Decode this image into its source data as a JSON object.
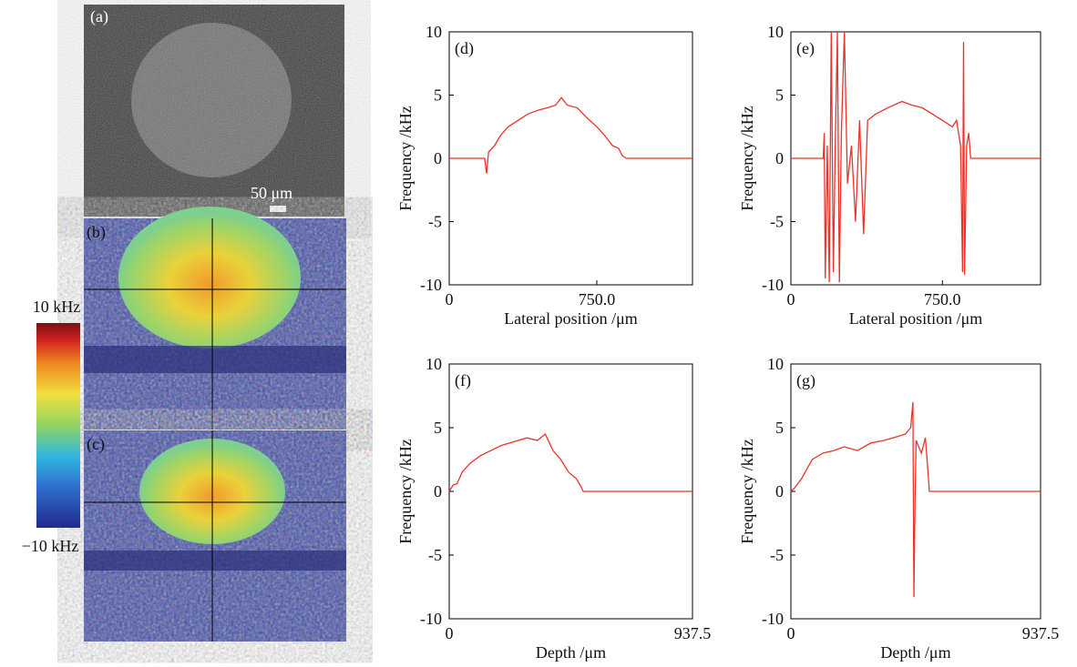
{
  "images": {
    "panel_labels": [
      "(a)",
      "(b)",
      "(c)"
    ],
    "scale_bar": "50 μm",
    "colorbar_max": "10 kHz",
    "colorbar_min": "−10 kHz"
  },
  "chart_data": [
    {
      "type": "line",
      "label": "(d)",
      "x_label": "Lateral position /μm",
      "y_label": "Frequency /kHz",
      "xlim": [
        0,
        1236
      ],
      "ylim": [
        -10,
        10
      ],
      "xticks": [
        0,
        {
          "value": 750,
          "label": "750.0"
        }
      ],
      "yticks": [
        -10,
        -5,
        0,
        5,
        10
      ],
      "x": [
        0,
        180,
        190,
        200,
        230,
        260,
        300,
        350,
        400,
        450,
        500,
        540,
        570,
        600,
        650,
        700,
        750,
        790,
        830,
        860,
        880,
        900,
        1236
      ],
      "series": [
        {
          "color": "#e8332a",
          "values": [
            0,
            0,
            -1.2,
            0.5,
            1.0,
            1.8,
            2.5,
            3.0,
            3.5,
            3.8,
            4.0,
            4.2,
            4.8,
            4.2,
            4.0,
            3.2,
            2.5,
            1.8,
            1.0,
            0.8,
            0.2,
            0,
            0
          ]
        }
      ]
    },
    {
      "type": "line",
      "label": "(e)",
      "x_label": "Lateral position  /μm",
      "y_label": "Frequency /kHz",
      "xlim": [
        0,
        1236
      ],
      "ylim": [
        -10,
        10
      ],
      "xticks": [
        0,
        {
          "value": 750,
          "label": "750.0"
        }
      ],
      "yticks": [
        -10,
        -5,
        0,
        5,
        10
      ],
      "x": [
        0,
        160,
        165,
        170,
        180,
        190,
        200,
        210,
        220,
        230,
        240,
        250,
        265,
        280,
        300,
        320,
        340,
        360,
        380,
        420,
        480,
        550,
        600,
        650,
        700,
        750,
        800,
        820,
        840,
        850,
        855,
        860,
        870,
        880,
        890,
        1236
      ],
      "series": [
        {
          "color": "#e8332a",
          "values": [
            0,
            0,
            2,
            -9.5,
            1,
            -9.8,
            10,
            -9,
            1.5,
            10,
            -9.8,
            2,
            10,
            -2,
            1,
            -5,
            3,
            -6,
            3,
            3.5,
            4,
            4.5,
            4.2,
            4,
            3.5,
            3,
            2.5,
            3,
            1,
            -9,
            9.2,
            -9.2,
            1,
            2,
            0,
            0
          ]
        }
      ]
    },
    {
      "type": "line",
      "label": "(f)",
      "x_label": "Depth  /μm",
      "y_label": "Frequency /kHz",
      "xlim": [
        0,
        937.5
      ],
      "ylim": [
        -10,
        10
      ],
      "xticks": [
        0,
        937.5
      ],
      "yticks": [
        -10,
        -5,
        0,
        5,
        10
      ],
      "x": [
        0,
        15,
        30,
        50,
        80,
        120,
        160,
        200,
        250,
        300,
        340,
        370,
        400,
        430,
        460,
        490,
        510,
        516,
        937.5
      ],
      "series": [
        {
          "color": "#e8332a",
          "values": [
            0,
            0.5,
            0.6,
            1.5,
            2.2,
            2.8,
            3.2,
            3.6,
            3.9,
            4.2,
            4.0,
            4.5,
            3.2,
            2.5,
            1.5,
            1.0,
            0.3,
            0,
            0
          ]
        }
      ]
    },
    {
      "type": "line",
      "label": "(g)",
      "x_label": "Depth  /μm",
      "y_label": "Frequency /kHz",
      "xlim": [
        0,
        937.5
      ],
      "ylim": [
        -10,
        10
      ],
      "xticks": [
        0,
        937.5
      ],
      "yticks": [
        -10,
        -5,
        0,
        5,
        10
      ],
      "x": [
        0,
        15,
        40,
        80,
        120,
        160,
        200,
        250,
        300,
        350,
        400,
        430,
        450,
        458,
        462,
        466,
        470,
        490,
        505,
        515,
        520,
        937.5
      ],
      "series": [
        {
          "color": "#e8332a",
          "values": [
            0,
            0.3,
            1,
            2.5,
            3,
            3.2,
            3.5,
            3.2,
            3.8,
            4,
            4.3,
            4.5,
            5,
            7,
            -8.3,
            -1,
            4,
            3,
            4.2,
            1.5,
            0,
            0
          ]
        }
      ]
    }
  ]
}
